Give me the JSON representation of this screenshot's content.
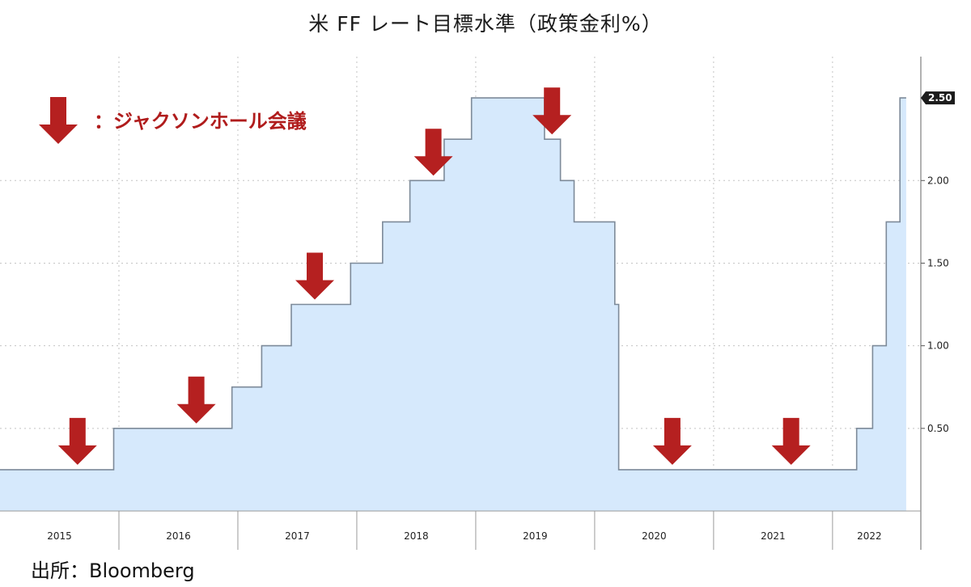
{
  "title": "米 FF レート目標水準（政策金利%）",
  "source": "出所：Bloomberg",
  "legend": {
    "marker": "red-down-arrow",
    "label": "：ジャクソンホール会議"
  },
  "colors": {
    "fill": "#d6e9fc",
    "line": "#7d8a99",
    "arrow": "#b52020",
    "grid": "#c4c4c4"
  },
  "chart_data": {
    "type": "area",
    "step": true,
    "title": "米 FF レート目標水準（政策金利%）",
    "xlabel": "",
    "ylabel": "",
    "x_tick_labels": [
      "2015",
      "2016",
      "2017",
      "2018",
      "2019",
      "2020",
      "2021",
      "2022"
    ],
    "y_ticks": [
      0.5,
      1.0,
      1.5,
      2.0
    ],
    "y_tick_labels": [
      "0.50",
      "1.00",
      "1.50",
      "2.00"
    ],
    "ylim": [
      0,
      2.75
    ],
    "xlim": [
      2015.0,
      2022.62
    ],
    "y_axis_side": "right",
    "last_value_label": "2.50",
    "grid": true,
    "series": [
      {
        "values": [
          {
            "date": "2015-01-01",
            "value": 0.25
          },
          {
            "date": "2015-12-16",
            "value": 0.5
          },
          {
            "date": "2016-12-14",
            "value": 0.75
          },
          {
            "date": "2017-03-15",
            "value": 1.0
          },
          {
            "date": "2017-06-14",
            "value": 1.25
          },
          {
            "date": "2017-12-13",
            "value": 1.5
          },
          {
            "date": "2018-03-21",
            "value": 1.75
          },
          {
            "date": "2018-06-13",
            "value": 2.0
          },
          {
            "date": "2018-09-26",
            "value": 2.25
          },
          {
            "date": "2018-12-19",
            "value": 2.5
          },
          {
            "date": "2019-07-31",
            "value": 2.25
          },
          {
            "date": "2019-09-18",
            "value": 2.0
          },
          {
            "date": "2019-10-30",
            "value": 1.75
          },
          {
            "date": "2020-03-03",
            "value": 1.25
          },
          {
            "date": "2020-03-15",
            "value": 0.25
          },
          {
            "date": "2022-03-16",
            "value": 0.5
          },
          {
            "date": "2022-05-04",
            "value": 1.0
          },
          {
            "date": "2022-06-15",
            "value": 1.75
          },
          {
            "date": "2022-07-27",
            "value": 2.5
          },
          {
            "date": "2022-08-15",
            "value": 2.5
          }
        ]
      }
    ],
    "annotations": [
      {
        "type": "arrow-down",
        "date": "2015-08-27",
        "value": 0.25
      },
      {
        "type": "arrow-down",
        "date": "2016-08-26",
        "value": 0.5
      },
      {
        "type": "arrow-down",
        "date": "2017-08-25",
        "value": 1.25
      },
      {
        "type": "arrow-down",
        "date": "2018-08-24",
        "value": 2.0
      },
      {
        "type": "arrow-down",
        "date": "2019-08-23",
        "value": 2.25
      },
      {
        "type": "arrow-down",
        "date": "2020-08-27",
        "value": 0.25
      },
      {
        "type": "arrow-down",
        "date": "2021-08-27",
        "value": 0.25
      }
    ]
  }
}
